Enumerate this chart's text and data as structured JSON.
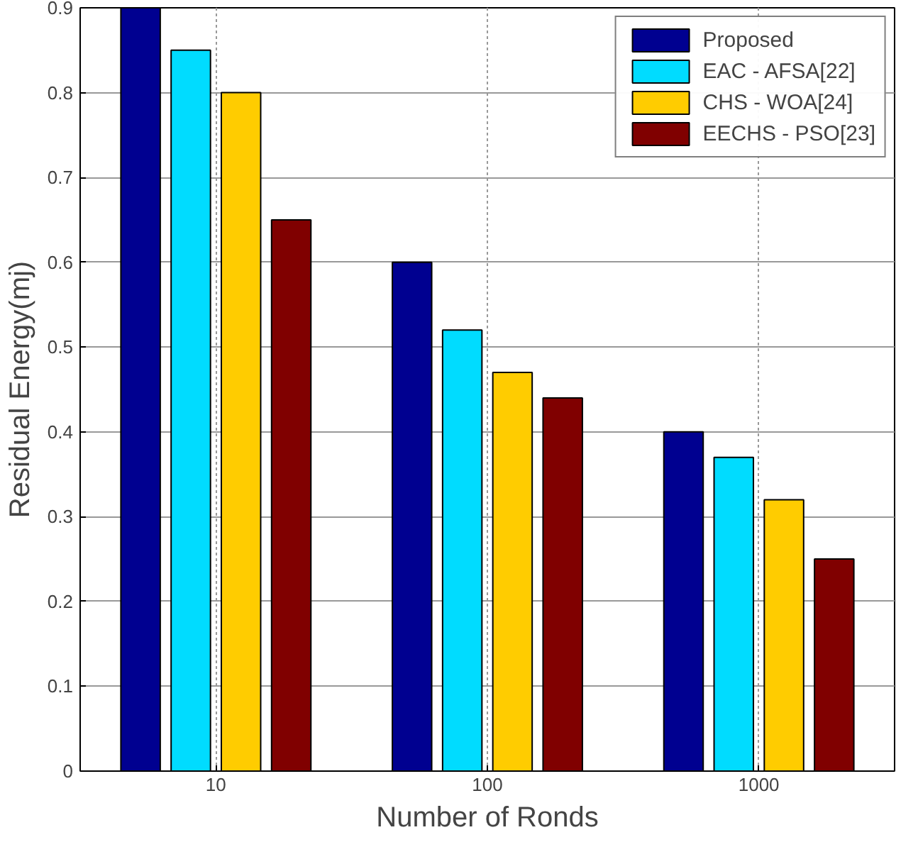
{
  "chart_data": {
    "type": "bar",
    "xlabel": "Number of Ronds",
    "ylabel": "Residual Energy(mj)",
    "categories": [
      "10",
      "100",
      "1000"
    ],
    "series": [
      {
        "name": "Proposed",
        "color": "#000090",
        "values": [
          0.9,
          0.6,
          0.4
        ]
      },
      {
        "name": "EAC - AFSA[22]",
        "color": "#00dcff",
        "values": [
          0.85,
          0.52,
          0.37
        ]
      },
      {
        "name": "CHS - WOA[24]",
        "color": "#ffcc00",
        "values": [
          0.8,
          0.47,
          0.32
        ]
      },
      {
        "name": "EECHS - PSO[23]",
        "color": "#800000",
        "values": [
          0.65,
          0.44,
          0.25
        ]
      }
    ],
    "ylim": [
      0,
      0.9
    ],
    "yticks": [
      0,
      0.1,
      0.2,
      0.3,
      0.4,
      0.5,
      0.6,
      0.7,
      0.8,
      0.9
    ],
    "grid": true,
    "legend": "top right"
  }
}
